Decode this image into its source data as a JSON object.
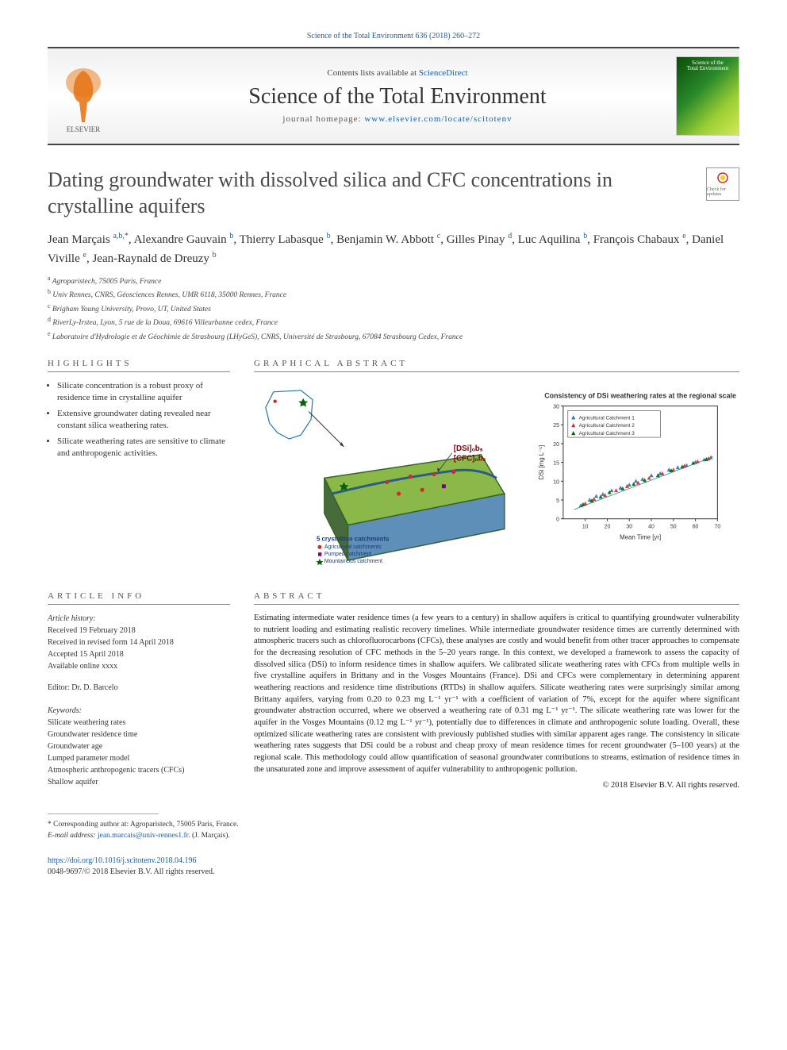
{
  "top_citation": "Science of the Total Environment 636 (2018) 260–272",
  "header": {
    "contents_prefix": "Contents lists available at ",
    "contents_link": "ScienceDirect",
    "journal_name": "Science of the Total Environment",
    "homepage_prefix": "journal homepage: ",
    "homepage_url": "www.elsevier.com/locate/scitotenv",
    "cover_line1": "Science of the",
    "cover_line2": "Total Environment"
  },
  "crossmark_label": "Check for updates",
  "article_title": "Dating groundwater with dissolved silica and CFC concentrations in crystalline aquifers",
  "authors_html": "Jean Marçais <sup><a>a,b,</a>*</sup>, Alexandre Gauvain <sup><a>b</a></sup>, Thierry Labasque <sup><a>b</a></sup>, Benjamin W. Abbott <sup><a>c</a></sup>, Gilles Pinay <sup><a>d</a></sup>, Luc Aquilina <sup><a>b</a></sup>, François Chabaux <sup><a>e</a></sup>, Daniel Viville <sup><a>e</a></sup>, Jean-Raynald de Dreuzy <sup><a>b</a></sup>",
  "affiliations": [
    {
      "sup": "a",
      "text": "Agroparistech, 75005 Paris, France"
    },
    {
      "sup": "b",
      "text": "Univ Rennes, CNRS, Géosciences Rennes, UMR 6118, 35000 Rennes, France"
    },
    {
      "sup": "c",
      "text": "Brigham Young University, Provo, UT, United States"
    },
    {
      "sup": "d",
      "text": "RiverLy-Irstea, Lyon, 5 rue de la Doua, 69616 Villeurbanne cedex, France"
    },
    {
      "sup": "e",
      "text": "Laboratoire d'Hydrologie et de Géochimie de Strasbourg (LHyGeS), CNRS, Université de Strasbourg, 67084 Strasbourg Cedex, France"
    }
  ],
  "highlights_heading": "HIGHLIGHTS",
  "highlights": [
    "Silicate concentration is a robust proxy of residence time in crystalline aquifer",
    "Extensive groundwater dating revealed near constant silica weathering rates.",
    "Silicate weathering rates are sensitive to climate and anthropogenic activities."
  ],
  "ga_heading": "GRAPHICAL ABSTRACT",
  "graphical_abstract": {
    "map_label": "",
    "block_title": "5 crystalline catchments",
    "legend_items": [
      {
        "marker": "circle",
        "color": "#d62728",
        "label": "Agricultural catchments"
      },
      {
        "marker": "square",
        "color": "#7f007f",
        "label": "Pumped catchment"
      },
      {
        "marker": "star",
        "color": "#006400",
        "label": "Mountainous catchment"
      }
    ],
    "dsi_label": "[DSi]ₒbₛ",
    "cfc_label": "[CFC]ₒbₛ",
    "chart": {
      "title": "Consistency of DSi weathering rates at the regional scale",
      "title_fontsize": 9,
      "xlabel": "Mean Time [yr]",
      "ylabel": "DSi [mg L⁻¹]",
      "xlim": [
        0,
        70
      ],
      "ylim": [
        0,
        30
      ],
      "xtick_step": 10,
      "ytick_step": 5,
      "background_color": "#ffffff",
      "border_color": "#333333",
      "label_fontsize": 8,
      "tick_fontsize": 7,
      "legend_items": [
        {
          "color": "#1f77b4",
          "marker": "triangle",
          "label": "Agricultural Catchment 1"
        },
        {
          "color": "#d62728",
          "marker": "triangle",
          "label": "Agricultural Catchment 2"
        },
        {
          "color": "#006400",
          "marker": "triangle",
          "label": "Agricultural Catchment 3"
        }
      ],
      "series": [
        {
          "color": "#1f77b4",
          "points": [
            [
              8,
              3.5
            ],
            [
              12,
              5
            ],
            [
              15,
              6
            ],
            [
              18,
              6.5
            ],
            [
              22,
              7.5
            ],
            [
              26,
              8.2
            ],
            [
              30,
              9
            ],
            [
              33,
              10
            ],
            [
              36,
              10.5
            ],
            [
              40,
              11.5
            ],
            [
              44,
              12
            ],
            [
              48,
              13
            ],
            [
              52,
              13.6
            ],
            [
              56,
              14.2
            ],
            [
              60,
              15
            ],
            [
              64,
              15.7
            ],
            [
              67,
              16.3
            ]
          ]
        },
        {
          "color": "#d62728",
          "points": [
            [
              10,
              4
            ],
            [
              14,
              5.2
            ],
            [
              19,
              6.2
            ],
            [
              24,
              7.5
            ],
            [
              29,
              8.6
            ],
            [
              34,
              9.5
            ],
            [
              39,
              10.8
            ],
            [
              45,
              12
            ],
            [
              50,
              13
            ],
            [
              55,
              14
            ],
            [
              61,
              15.2
            ],
            [
              66,
              16
            ]
          ]
        },
        {
          "color": "#006400",
          "points": [
            [
              9,
              3.8
            ],
            [
              13,
              4.8
            ],
            [
              17,
              5.8
            ],
            [
              21,
              7
            ],
            [
              27,
              8
            ],
            [
              32,
              9.2
            ],
            [
              37,
              10.2
            ],
            [
              43,
              11.5
            ],
            [
              49,
              12.8
            ],
            [
              54,
              13.8
            ],
            [
              59,
              14.8
            ],
            [
              65,
              15.8
            ]
          ]
        }
      ],
      "trendline": {
        "color": "#1f77b4",
        "width": 0.8,
        "dash": "none",
        "points": [
          [
            5,
            2.5
          ],
          [
            68,
            16.5
          ]
        ]
      }
    }
  },
  "article_info_heading": "ARTICLE INFO",
  "article_info": {
    "history_label": "Article history:",
    "received": "Received 19 February 2018",
    "revised": "Received in revised form 14 April 2018",
    "accepted": "Accepted 15 April 2018",
    "online": "Available online xxxx",
    "editor_label": "Editor: Dr. D. Barcelo",
    "keywords_label": "Keywords:",
    "keywords": [
      "Silicate weathering rates",
      "Groundwater residence time",
      "Groundwater age",
      "Lumped parameter model",
      "Atmospheric anthropogenic tracers (CFCs)",
      "Shallow aquifer"
    ]
  },
  "abstract_heading": "ABSTRACT",
  "abstract_text": "Estimating intermediate water residence times (a few years to a century) in shallow aquifers is critical to quantifying groundwater vulnerability to nutrient loading and estimating realistic recovery timelines. While intermediate groundwater residence times are currently determined with atmospheric tracers such as chlorofluorocarbons (CFCs), these analyses are costly and would benefit from other tracer approaches to compensate for the decreasing resolution of CFC methods in the 5–20 years range. In this context, we developed a framework to assess the capacity of dissolved silica (DSi) to inform residence times in shallow aquifers. We calibrated silicate weathering rates with CFCs from multiple wells in five crystalline aquifers in Brittany and in the Vosges Mountains (France). DSi and CFCs were complementary in determining apparent weathering reactions and residence time distributions (RTDs) in shallow aquifers. Silicate weathering rates were surprisingly similar among Brittany aquifers, varying from 0.20 to 0.23 mg L⁻¹ yr⁻¹ with a coefficient of variation of 7%, except for the aquifer where significant groundwater abstraction occurred, where we observed a weathering rate of 0.31 mg L⁻¹ yr⁻¹. The silicate weathering rate was lower for the aquifer in the Vosges Mountains (0.12 mg L⁻¹ yr⁻¹), potentially due to differences in climate and anthropogenic solute loading. Overall, these optimized silicate weathering rates are consistent with previously published studies with similar apparent ages range. The consistency in silicate weathering rates suggests that DSi could be a robust and cheap proxy of mean residence times for recent groundwater (5–100 years) at the regional scale. This methodology could allow quantification of seasonal groundwater contributions to streams, estimation of residence times in the unsaturated zone and improve assessment of aquifer vulnerability to anthropogenic pollution.",
  "copyright": "© 2018 Elsevier B.V. All rights reserved.",
  "footnote": {
    "corresponding": "* Corresponding author at: Agroparistech, 75005 Paris, France.",
    "email_label": "E-mail address: ",
    "email": "jean.marcais@univ-rennes1.fr",
    "email_suffix": ". (J. Marçais)."
  },
  "doi": {
    "url": "https://doi.org/10.1016/j.scitotenv.2018.04.196",
    "issn_line": "0048-9697/© 2018 Elsevier B.V. All rights reserved."
  },
  "colors": {
    "link": "#1a5dab",
    "text": "#222222",
    "heading_rule": "#888888"
  }
}
